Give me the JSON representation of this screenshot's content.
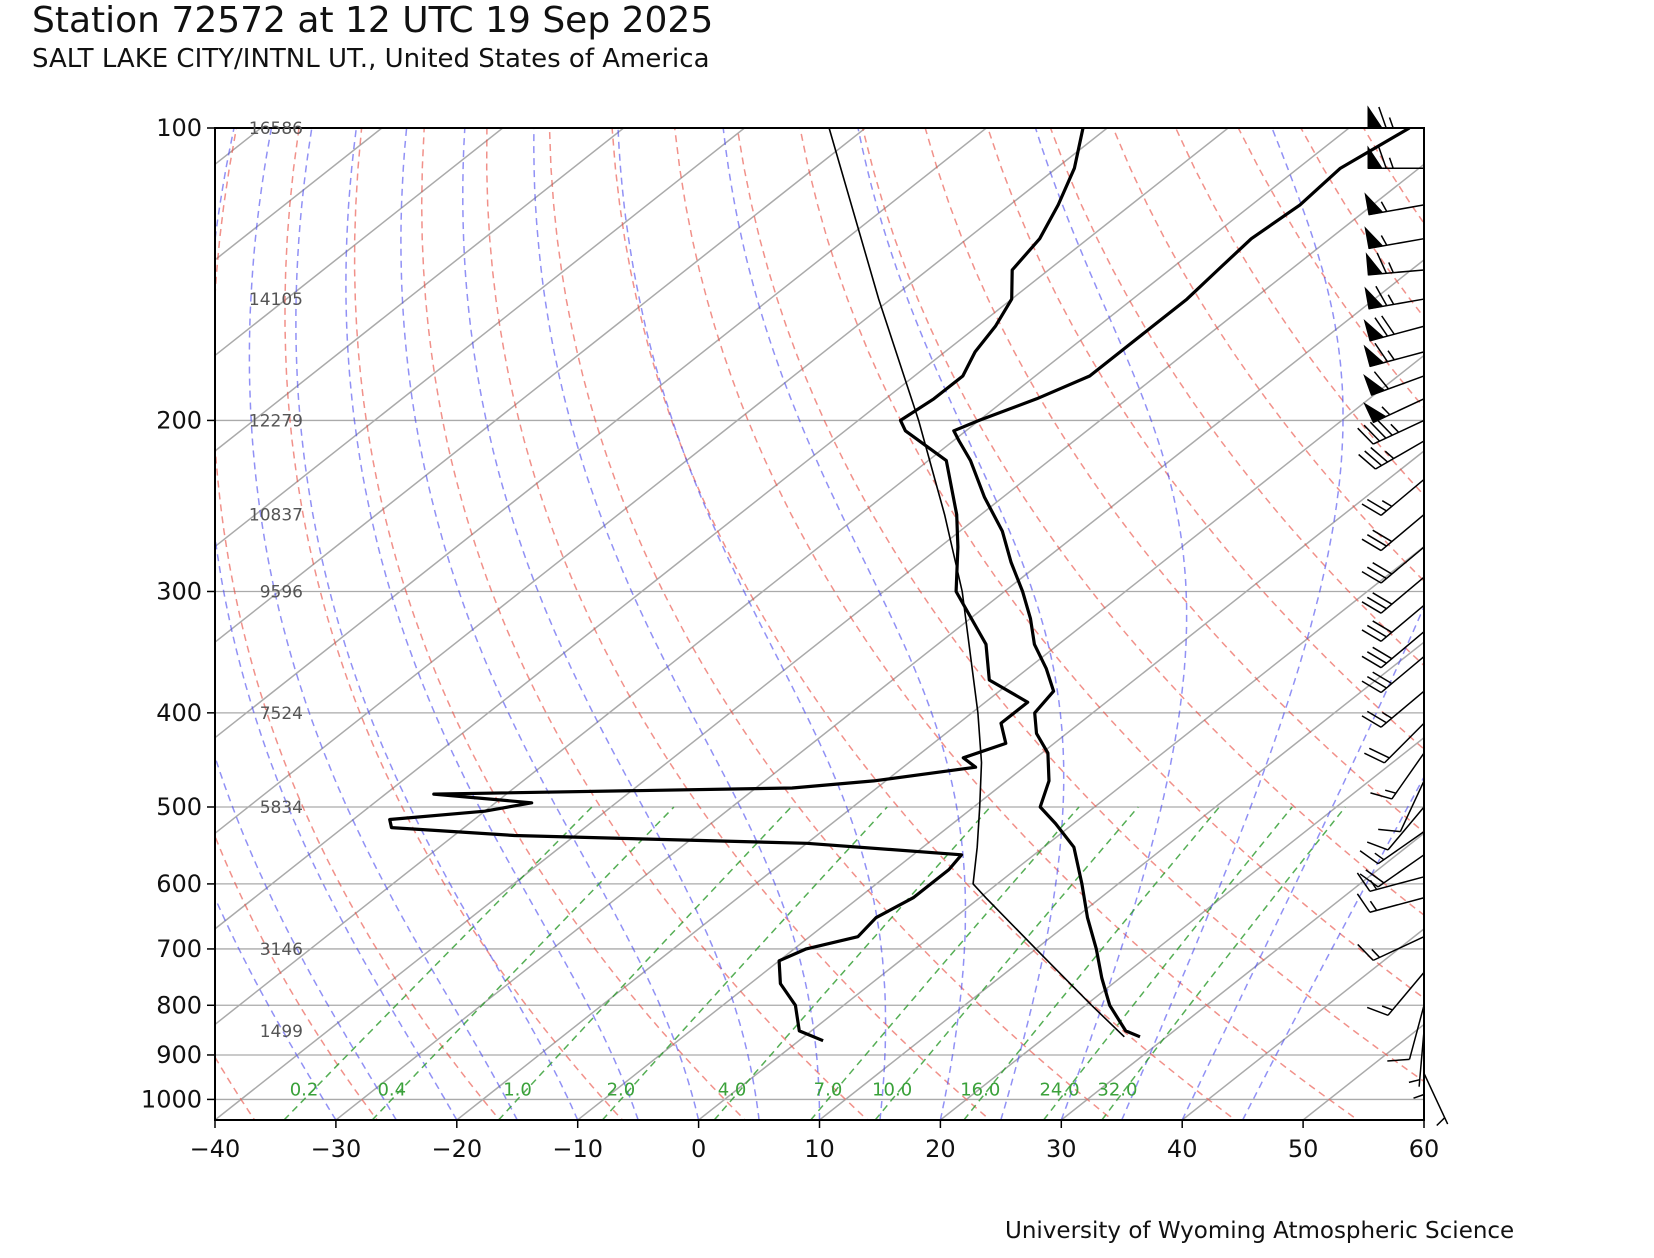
{
  "title": "Station 72572 at 12 UTC 19 Sep 2025",
  "subtitle": "SALT LAKE CITY/INTNL UT., United States of America",
  "credit": "University of Wyoming Atmospheric Science",
  "colors": {
    "dry_adiabats": "#e8473c",
    "moist_adiabats": "#4747ee",
    "mixing_ratio": "#2a9a2a",
    "isotherms": "#aaaaaa",
    "profiles": "#000000"
  },
  "chart_data": {
    "type": "skew-t",
    "title": "Station 72572 at 12 UTC 19 Sep 2025",
    "xlim": [
      -40,
      60
    ],
    "ylim": [
      1050,
      100
    ],
    "x_ticks": [
      -40,
      -30,
      -20,
      -10,
      0,
      10,
      20,
      30,
      40,
      50,
      60
    ],
    "x_tick_labels": [
      "−40",
      "−30",
      "−20",
      "−10",
      "0",
      "10",
      "20",
      "30",
      "40",
      "50",
      "60"
    ],
    "pressure_ticks": [
      100,
      200,
      300,
      400,
      500,
      600,
      700,
      800,
      900,
      1000
    ],
    "pressure_tick_labels": [
      "100",
      "200",
      "300",
      "400",
      "500",
      "600",
      "700",
      "800",
      "900",
      "1000"
    ],
    "y_scale": "log",
    "grid": true,
    "height_labels": [
      {
        "p": 100,
        "label": "16586"
      },
      {
        "p": 150,
        "label": "14105"
      },
      {
        "p": 200,
        "label": "12279"
      },
      {
        "p": 250,
        "label": "10837"
      },
      {
        "p": 300,
        "label": "9596"
      },
      {
        "p": 400,
        "label": "7524"
      },
      {
        "p": 500,
        "label": "5834"
      },
      {
        "p": 700,
        "label": "3146"
      },
      {
        "p": 850,
        "label": "1499"
      }
    ],
    "mixing_ratio_labels": [
      "0.2",
      "0.4",
      "1.0",
      "2.0",
      "4.0",
      "7.0",
      "10.0",
      "16.0",
      "24.0",
      "32.0"
    ],
    "mixing_ratio_values": [
      0.2,
      0.4,
      1.0,
      2.0,
      4.0,
      7.0,
      10.0,
      16.0,
      24.0,
      32.0
    ],
    "temperature_profile": [
      {
        "p": 862,
        "t": 27.8
      },
      {
        "p": 850,
        "t": 26.0
      },
      {
        "p": 800,
        "t": 22.0
      },
      {
        "p": 750,
        "t": 18.5
      },
      {
        "p": 700,
        "t": 15.0
      },
      {
        "p": 650,
        "t": 11.0
      },
      {
        "p": 600,
        "t": 7.0
      },
      {
        "p": 550,
        "t": 2.5
      },
      {
        "p": 520,
        "t": -1.5
      },
      {
        "p": 500,
        "t": -4.5
      },
      {
        "p": 470,
        "t": -6.5
      },
      {
        "p": 440,
        "t": -9.5
      },
      {
        "p": 420,
        "t": -12.5
      },
      {
        "p": 400,
        "t": -14.8
      },
      {
        "p": 380,
        "t": -15.5
      },
      {
        "p": 360,
        "t": -18.5
      },
      {
        "p": 340,
        "t": -22.0
      },
      {
        "p": 320,
        "t": -25.0
      },
      {
        "p": 300,
        "t": -28.5
      },
      {
        "p": 280,
        "t": -32.5
      },
      {
        "p": 260,
        "t": -36.5
      },
      {
        "p": 240,
        "t": -41.5
      },
      {
        "p": 220,
        "t": -46.5
      },
      {
        "p": 210,
        "t": -49.5
      },
      {
        "p": 205,
        "t": -51.0
      },
      {
        "p": 200,
        "t": -50.0
      },
      {
        "p": 190,
        "t": -47.5
      },
      {
        "p": 180,
        "t": -45.5
      },
      {
        "p": 170,
        "t": -45.5
      },
      {
        "p": 160,
        "t": -45.5
      },
      {
        "p": 150,
        "t": -45.5
      },
      {
        "p": 140,
        "t": -46.0
      },
      {
        "p": 130,
        "t": -46.5
      },
      {
        "p": 120,
        "t": -46.0
      },
      {
        "p": 110,
        "t": -46.5
      },
      {
        "p": 100,
        "t": -45.0
      }
    ],
    "dewpoint_profile": [
      {
        "p": 870,
        "t": 2.0
      },
      {
        "p": 850,
        "t": -1.0
      },
      {
        "p": 800,
        "t": -4.0
      },
      {
        "p": 760,
        "t": -7.5
      },
      {
        "p": 720,
        "t": -10.0
      },
      {
        "p": 700,
        "t": -9.0
      },
      {
        "p": 680,
        "t": -6.0
      },
      {
        "p": 650,
        "t": -6.5
      },
      {
        "p": 620,
        "t": -5.5
      },
      {
        "p": 580,
        "t": -5.5
      },
      {
        "p": 560,
        "t": -6.0
      },
      {
        "p": 545,
        "t": -20.0
      },
      {
        "p": 535,
        "t": -45.0
      },
      {
        "p": 525,
        "t": -56.0
      },
      {
        "p": 515,
        "t": -57.0
      },
      {
        "p": 505,
        "t": -50.0
      },
      {
        "p": 495,
        "t": -47.0
      },
      {
        "p": 485,
        "t": -56.0
      },
      {
        "p": 478,
        "t": -27.0
      },
      {
        "p": 470,
        "t": -21.0
      },
      {
        "p": 455,
        "t": -14.0
      },
      {
        "p": 445,
        "t": -16.0
      },
      {
        "p": 430,
        "t": -14.0
      },
      {
        "p": 410,
        "t": -16.5
      },
      {
        "p": 390,
        "t": -16.5
      },
      {
        "p": 370,
        "t": -22.0
      },
      {
        "p": 340,
        "t": -26.0
      },
      {
        "p": 300,
        "t": -34.0
      },
      {
        "p": 270,
        "t": -38.5
      },
      {
        "p": 250,
        "t": -42.0
      },
      {
        "p": 220,
        "t": -48.5
      },
      {
        "p": 205,
        "t": -55.0
      },
      {
        "p": 200,
        "t": -56.5
      },
      {
        "p": 190,
        "t": -56.0
      },
      {
        "p": 180,
        "t": -56.0
      },
      {
        "p": 170,
        "t": -57.5
      },
      {
        "p": 160,
        "t": -58.5
      },
      {
        "p": 150,
        "t": -60.0
      },
      {
        "p": 140,
        "t": -63.0
      },
      {
        "p": 130,
        "t": -64.0
      },
      {
        "p": 120,
        "t": -66.0
      },
      {
        "p": 110,
        "t": -68.5
      },
      {
        "p": 100,
        "t": -72.0
      }
    ],
    "parcel_profile": [
      {
        "p": 862,
        "t": 26.5
      },
      {
        "p": 800,
        "t": 20.5
      },
      {
        "p": 700,
        "t": 10.0
      },
      {
        "p": 620,
        "t": 0.5
      },
      {
        "p": 600,
        "t": -2.0
      },
      {
        "p": 550,
        "t": -5.5
      },
      {
        "p": 500,
        "t": -9.5
      },
      {
        "p": 450,
        "t": -14.0
      },
      {
        "p": 400,
        "t": -19.5
      },
      {
        "p": 350,
        "t": -26.0
      },
      {
        "p": 300,
        "t": -33.5
      },
      {
        "p": 250,
        "t": -43.0
      },
      {
        "p": 200,
        "t": -55.0
      },
      {
        "p": 150,
        "t": -71.0
      },
      {
        "p": 100,
        "t": -93.0
      }
    ],
    "wind_barbs": [
      {
        "p": 100,
        "spd": 65,
        "dir": 270
      },
      {
        "p": 110,
        "spd": 65,
        "dir": 270
      },
      {
        "p": 120,
        "spd": 55,
        "dir": 260
      },
      {
        "p": 130,
        "spd": 55,
        "dir": 260
      },
      {
        "p": 140,
        "spd": 65,
        "dir": 265
      },
      {
        "p": 150,
        "spd": 65,
        "dir": 260
      },
      {
        "p": 160,
        "spd": 70,
        "dir": 255
      },
      {
        "p": 170,
        "spd": 65,
        "dir": 255
      },
      {
        "p": 180,
        "spd": 60,
        "dir": 250
      },
      {
        "p": 190,
        "spd": 55,
        "dir": 245
      },
      {
        "p": 200,
        "spd": 45,
        "dir": 245
      },
      {
        "p": 210,
        "spd": 35,
        "dir": 240
      },
      {
        "p": 230,
        "spd": 25,
        "dir": 230
      },
      {
        "p": 250,
        "spd": 30,
        "dir": 230
      },
      {
        "p": 270,
        "spd": 30,
        "dir": 230
      },
      {
        "p": 290,
        "spd": 30,
        "dir": 230
      },
      {
        "p": 310,
        "spd": 30,
        "dir": 230
      },
      {
        "p": 330,
        "spd": 30,
        "dir": 230
      },
      {
        "p": 350,
        "spd": 30,
        "dir": 230
      },
      {
        "p": 380,
        "spd": 25,
        "dir": 230
      },
      {
        "p": 410,
        "spd": 20,
        "dir": 225
      },
      {
        "p": 440,
        "spd": 15,
        "dir": 215
      },
      {
        "p": 470,
        "spd": 10,
        "dir": 205
      },
      {
        "p": 500,
        "spd": 10,
        "dir": 220
      },
      {
        "p": 530,
        "spd": 15,
        "dir": 235
      },
      {
        "p": 560,
        "spd": 20,
        "dir": 235
      },
      {
        "p": 590,
        "spd": 15,
        "dir": 255
      },
      {
        "p": 620,
        "spd": 15,
        "dir": 255
      },
      {
        "p": 680,
        "spd": 15,
        "dir": 245
      },
      {
        "p": 740,
        "spd": 15,
        "dir": 220
      },
      {
        "p": 800,
        "spd": 10,
        "dir": 195
      },
      {
        "p": 850,
        "spd": 5,
        "dir": 185
      },
      {
        "p": 880,
        "spd": 5,
        "dir": 180
      },
      {
        "p": 940,
        "spd": 5,
        "dir": 155
      }
    ]
  }
}
